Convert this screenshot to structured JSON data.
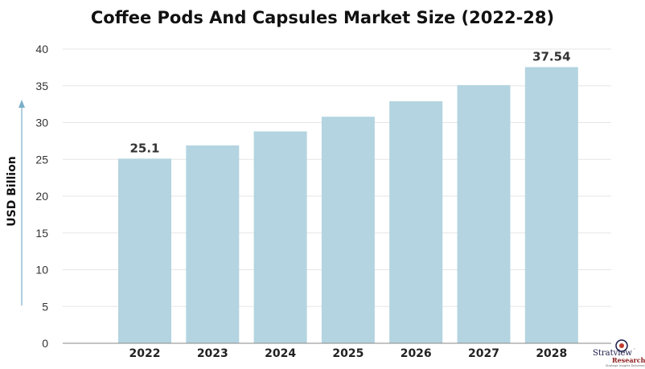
{
  "chart_data": {
    "type": "bar",
    "title": "Coffee Pods And Capsules Market Size (2022-28)",
    "xlabel": "",
    "ylabel": "USD Billion",
    "categories": [
      "2022",
      "2023",
      "2024",
      "2025",
      "2026",
      "2027",
      "2028"
    ],
    "values": [
      25.1,
      26.9,
      28.8,
      30.8,
      32.9,
      35.1,
      37.54
    ],
    "ylim": [
      0,
      40
    ],
    "yticks": [
      0,
      5,
      10,
      15,
      20,
      25,
      30,
      35,
      40
    ],
    "data_labels": {
      "2022": "25.1",
      "2028": "37.54"
    },
    "grid": true,
    "bar_color": "#b3d4e0"
  },
  "logo": {
    "name": "Stratview",
    "tm": "™",
    "sub": "Research",
    "tagline": "Strategic Insights Delivered"
  }
}
